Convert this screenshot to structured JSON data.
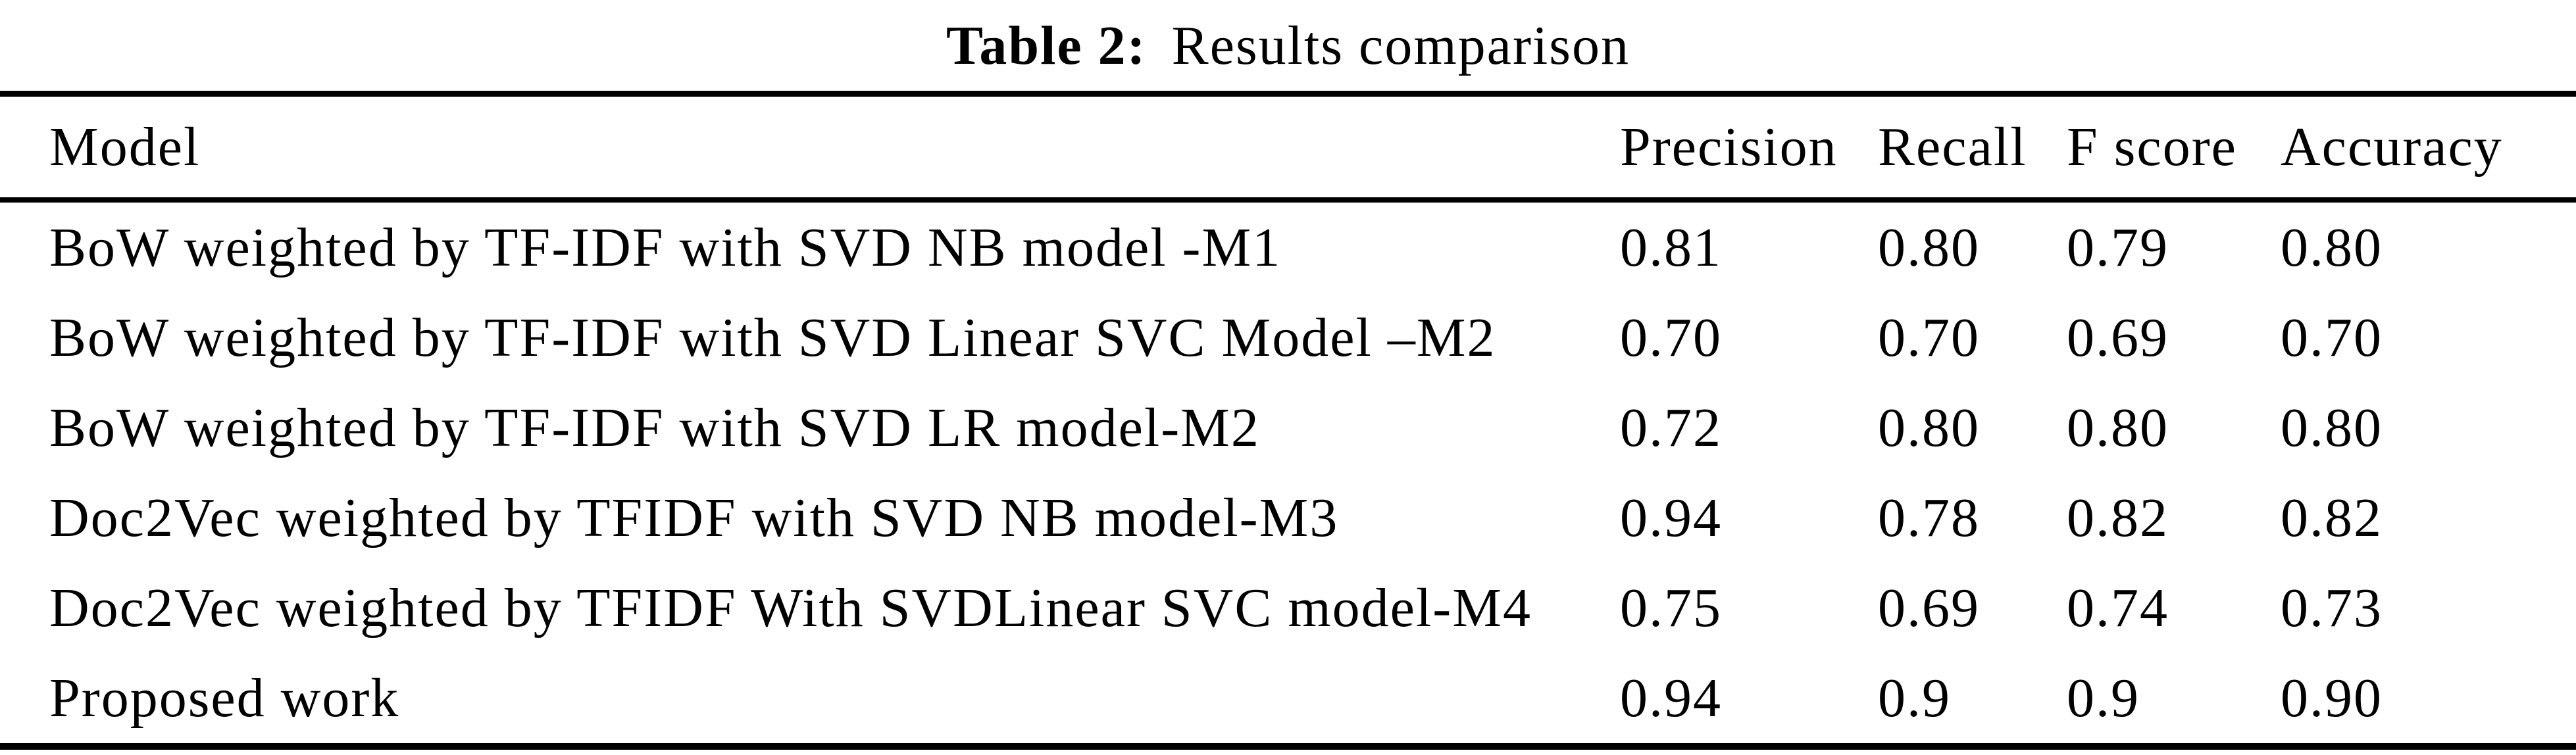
{
  "caption": {
    "label": "Table 2:",
    "text": "Results comparison"
  },
  "table": {
    "columns": [
      "Model",
      "Precision",
      "Recall",
      "F score",
      "Accuracy"
    ],
    "rows": [
      {
        "model": "BoW weighted by TF-IDF with SVD NB model -M1",
        "precision": "0.81",
        "recall": "0.80",
        "f_score": "0.79",
        "accuracy": "0.80"
      },
      {
        "model": "BoW weighted by TF-IDF with SVD Linear SVC Model –M2",
        "precision": "0.70",
        "recall": "0.70",
        "f_score": "0.69",
        "accuracy": "0.70"
      },
      {
        "model": "BoW weighted by TF-IDF with SVD LR model-M2",
        "precision": "0.72",
        "recall": "0.80",
        "f_score": "0.80",
        "accuracy": "0.80"
      },
      {
        "model": "Doc2Vec weighted by TFIDF with SVD NB model-M3",
        "precision": "0.94",
        "recall": "0.78",
        "f_score": "0.82",
        "accuracy": "0.82"
      },
      {
        "model": "Doc2Vec weighted by TFIDF With SVDLinear SVC model-M4",
        "precision": "0.75",
        "recall": "0.69",
        "f_score": "0.74",
        "accuracy": "0.73"
      },
      {
        "model": "Proposed work",
        "precision": "0.94",
        "recall": "0.9",
        "f_score": "0.9",
        "accuracy": "0.90"
      }
    ]
  },
  "chart_data": {
    "type": "table",
    "title": "Table 2: Results comparison",
    "columns": [
      "Model",
      "Precision",
      "Recall",
      "F score",
      "Accuracy"
    ],
    "series": [
      {
        "name": "BoW weighted by TF-IDF with SVD NB model -M1",
        "values": [
          0.81,
          0.8,
          0.79,
          0.8
        ]
      },
      {
        "name": "BoW weighted by TF-IDF with SVD Linear SVC Model –M2",
        "values": [
          0.7,
          0.7,
          0.69,
          0.7
        ]
      },
      {
        "name": "BoW weighted by TF-IDF with SVD LR model-M2",
        "values": [
          0.72,
          0.8,
          0.8,
          0.8
        ]
      },
      {
        "name": "Doc2Vec weighted by TFIDF with SVD NB model-M3",
        "values": [
          0.94,
          0.78,
          0.82,
          0.82
        ]
      },
      {
        "name": "Doc2Vec weighted by TFIDF With SVDLinear SVC model-M4",
        "values": [
          0.75,
          0.69,
          0.74,
          0.73
        ]
      },
      {
        "name": "Proposed work",
        "values": [
          0.94,
          0.9,
          0.9,
          0.9
        ]
      }
    ]
  },
  "colors": {
    "text": "#000000",
    "background": "#ffffff",
    "rule": "#000000"
  }
}
